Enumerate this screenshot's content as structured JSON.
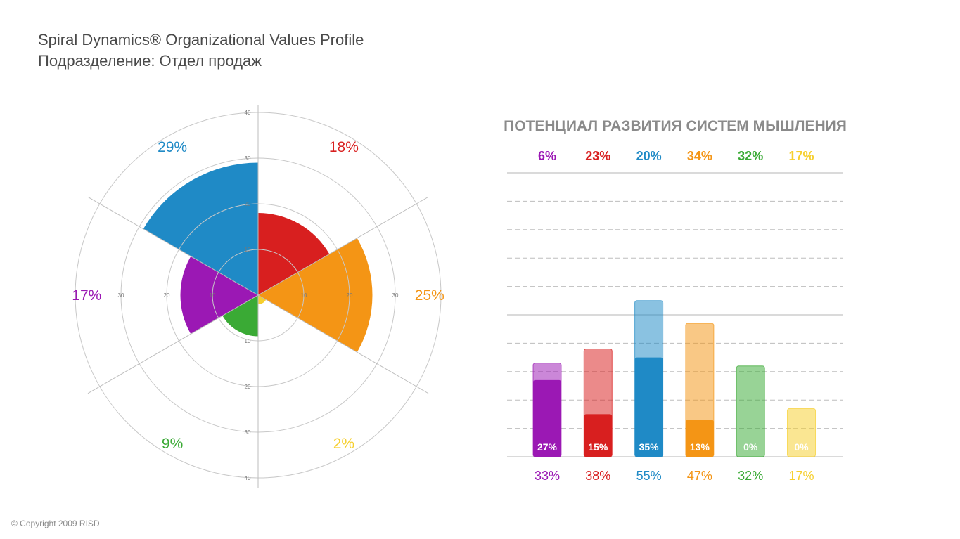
{
  "header": {
    "title": "Spiral Dynamics® Organizational Values Profile",
    "subtitle": "Подразделение: Отдел продаж"
  },
  "copyright": "© Copyright 2009 RISD",
  "colors": {
    "purple": "#9b18b4",
    "red": "#d81f1f",
    "blue": "#1f8ac6",
    "orange": "#f49515",
    "green": "#3aaa35",
    "yellow": "#f6cf2e"
  },
  "chart_data": [
    {
      "type": "polar-area",
      "title": "",
      "rlim": [
        0,
        40
      ],
      "radial_ticks": [
        "10",
        "20",
        "30",
        "40"
      ],
      "sectors": [
        {
          "name": "blue",
          "label": "29%",
          "value": 29,
          "color": "#1f8ac6",
          "start_deg": -60,
          "end_deg": 0
        },
        {
          "name": "red",
          "label": "18%",
          "value": 18,
          "color": "#d81f1f",
          "start_deg": 0,
          "end_deg": 60
        },
        {
          "name": "orange",
          "label": "25%",
          "value": 25,
          "color": "#f49515",
          "start_deg": 60,
          "end_deg": 120
        },
        {
          "name": "yellow",
          "label": "2%",
          "value": 2,
          "color": "#f6cf2e",
          "start_deg": 120,
          "end_deg": 180
        },
        {
          "name": "green",
          "label": "9%",
          "value": 9,
          "color": "#3aaa35",
          "start_deg": 180,
          "end_deg": 240
        },
        {
          "name": "purple",
          "label": "17%",
          "value": 17,
          "color": "#9b18b4",
          "start_deg": 240,
          "end_deg": 300
        }
      ]
    },
    {
      "type": "bar",
      "title": "ПОТЕНЦИАЛ РАЗВИТИЯ СИСТЕМ МЫШЛЕНИЯ",
      "ylim": [
        0,
        100
      ],
      "series_names": [
        "current",
        "potential",
        "total"
      ],
      "bars": [
        {
          "name": "purple",
          "color": "#9b18b4",
          "current": 27,
          "current_label": "27%",
          "potential": 6,
          "potential_label": "6%",
          "total": 33,
          "total_label": "33%"
        },
        {
          "name": "red",
          "color": "#d81f1f",
          "current": 15,
          "current_label": "15%",
          "potential": 23,
          "potential_label": "23%",
          "total": 38,
          "total_label": "38%"
        },
        {
          "name": "blue",
          "color": "#1f8ac6",
          "current": 35,
          "current_label": "35%",
          "potential": 20,
          "potential_label": "20%",
          "total": 55,
          "total_label": "55%"
        },
        {
          "name": "orange",
          "color": "#f49515",
          "current": 13,
          "current_label": "13%",
          "potential": 34,
          "potential_label": "34%",
          "total": 47,
          "total_label": "47%"
        },
        {
          "name": "green",
          "color": "#3aaa35",
          "current": 0,
          "current_label": "0%",
          "potential": 32,
          "potential_label": "32%",
          "total": 32,
          "total_label": "32%"
        },
        {
          "name": "yellow",
          "color": "#f6cf2e",
          "current": 0,
          "current_label": "0%",
          "potential": 17,
          "potential_label": "17%",
          "total": 17,
          "total_label": "17%"
        }
      ]
    }
  ]
}
